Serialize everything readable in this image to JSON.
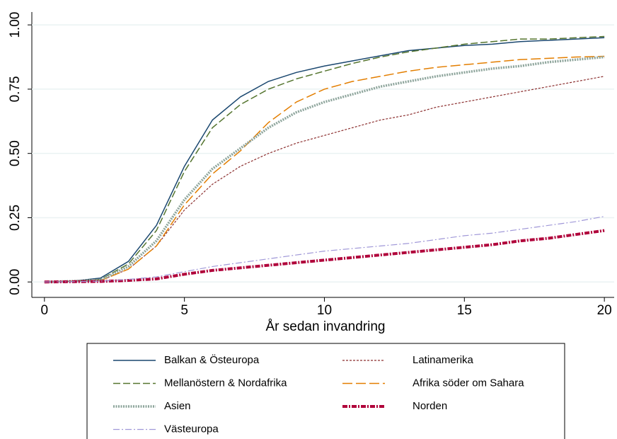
{
  "chart_data": {
    "type": "line",
    "x_label": "År sedan invandring",
    "x": [
      0,
      1,
      2,
      3,
      4,
      5,
      6,
      7,
      8,
      9,
      10,
      11,
      12,
      13,
      14,
      15,
      16,
      17,
      18,
      19,
      20
    ],
    "xlim": [
      -0.45,
      20.35
    ],
    "xticks": [
      0,
      5,
      10,
      15,
      20
    ],
    "ylim": [
      -0.06,
      1.05
    ],
    "yticks": [
      {
        "value": 0,
        "label": "0.00"
      },
      0.25,
      {
        "value": 0.5,
        "label": "0.50"
      },
      0.75,
      {
        "value": 1,
        "label": "1.00"
      }
    ],
    "grid": true,
    "series": [
      {
        "name": "Balkan & Östeuropa",
        "color": "#1a476f",
        "values": [
          0,
          0.003,
          0.015,
          0.08,
          0.22,
          0.45,
          0.63,
          0.72,
          0.78,
          0.815,
          0.84,
          0.86,
          0.88,
          0.9,
          0.91,
          0.92,
          0.925,
          0.935,
          0.94,
          0.945,
          0.95
        ]
      },
      {
        "name": "Latinamerika",
        "color": "#8c2f2f",
        "values": [
          0,
          0.002,
          0.005,
          0.05,
          0.14,
          0.28,
          0.38,
          0.45,
          0.5,
          0.54,
          0.57,
          0.6,
          0.63,
          0.65,
          0.68,
          0.7,
          0.72,
          0.74,
          0.76,
          0.78,
          0.8
        ]
      },
      {
        "name": "Mellanöstern & Nordafrika",
        "color": "#55752f",
        "values": [
          0,
          0.003,
          0.01,
          0.07,
          0.2,
          0.43,
          0.6,
          0.69,
          0.75,
          0.79,
          0.82,
          0.85,
          0.875,
          0.895,
          0.91,
          0.925,
          0.935,
          0.945,
          0.945,
          0.95,
          0.955
        ]
      },
      {
        "name": "Afrika söder om Sahara",
        "color": "#e37e00",
        "values": [
          0,
          0.002,
          0.005,
          0.05,
          0.14,
          0.3,
          0.42,
          0.51,
          0.62,
          0.7,
          0.75,
          0.78,
          0.8,
          0.82,
          0.835,
          0.845,
          0.855,
          0.865,
          0.87,
          0.875,
          0.878
        ]
      },
      {
        "name": "Asien",
        "color": "#8ea59c",
        "values": [
          0,
          0.003,
          0.008,
          0.06,
          0.16,
          0.32,
          0.44,
          0.52,
          0.6,
          0.66,
          0.7,
          0.73,
          0.76,
          0.78,
          0.8,
          0.815,
          0.83,
          0.84,
          0.855,
          0.865,
          0.875
        ]
      },
      {
        "name": "Norden",
        "color": "#b0003a",
        "values": [
          0,
          0.001,
          0.002,
          0.006,
          0.012,
          0.03,
          0.045,
          0.055,
          0.065,
          0.075,
          0.085,
          0.095,
          0.105,
          0.115,
          0.125,
          0.135,
          0.145,
          0.16,
          0.17,
          0.185,
          0.2
        ]
      },
      {
        "name": "Västeuropa",
        "color": "#a098d8",
        "values": [
          0,
          0.001,
          0.003,
          0.01,
          0.02,
          0.04,
          0.06,
          0.075,
          0.09,
          0.105,
          0.12,
          0.13,
          0.14,
          0.15,
          0.165,
          0.18,
          0.19,
          0.205,
          0.22,
          0.235,
          0.255
        ]
      }
    ]
  }
}
